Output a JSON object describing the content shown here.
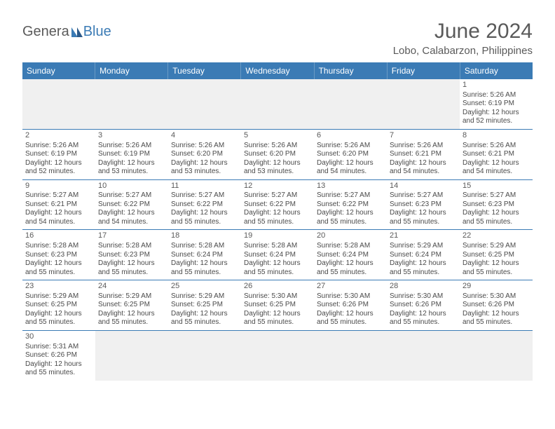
{
  "logo": {
    "part1": "Genera",
    "part2": "Blue"
  },
  "title": "June 2024",
  "location": "Lobo, Calabarzon, Philippines",
  "colors": {
    "header_bg": "#3b7bb5",
    "text": "#5a5a5a"
  },
  "dayHeaders": [
    "Sunday",
    "Monday",
    "Tuesday",
    "Wednesday",
    "Thursday",
    "Friday",
    "Saturday"
  ],
  "weeks": [
    [
      {
        "empty": true
      },
      {
        "empty": true
      },
      {
        "empty": true
      },
      {
        "empty": true
      },
      {
        "empty": true
      },
      {
        "empty": true
      },
      {
        "day": "1",
        "sunrise": "Sunrise: 5:26 AM",
        "sunset": "Sunset: 6:19 PM",
        "daylight1": "Daylight: 12 hours",
        "daylight2": "and 52 minutes."
      }
    ],
    [
      {
        "day": "2",
        "sunrise": "Sunrise: 5:26 AM",
        "sunset": "Sunset: 6:19 PM",
        "daylight1": "Daylight: 12 hours",
        "daylight2": "and 52 minutes."
      },
      {
        "day": "3",
        "sunrise": "Sunrise: 5:26 AM",
        "sunset": "Sunset: 6:19 PM",
        "daylight1": "Daylight: 12 hours",
        "daylight2": "and 53 minutes."
      },
      {
        "day": "4",
        "sunrise": "Sunrise: 5:26 AM",
        "sunset": "Sunset: 6:20 PM",
        "daylight1": "Daylight: 12 hours",
        "daylight2": "and 53 minutes."
      },
      {
        "day": "5",
        "sunrise": "Sunrise: 5:26 AM",
        "sunset": "Sunset: 6:20 PM",
        "daylight1": "Daylight: 12 hours",
        "daylight2": "and 53 minutes."
      },
      {
        "day": "6",
        "sunrise": "Sunrise: 5:26 AM",
        "sunset": "Sunset: 6:20 PM",
        "daylight1": "Daylight: 12 hours",
        "daylight2": "and 54 minutes."
      },
      {
        "day": "7",
        "sunrise": "Sunrise: 5:26 AM",
        "sunset": "Sunset: 6:21 PM",
        "daylight1": "Daylight: 12 hours",
        "daylight2": "and 54 minutes."
      },
      {
        "day": "8",
        "sunrise": "Sunrise: 5:26 AM",
        "sunset": "Sunset: 6:21 PM",
        "daylight1": "Daylight: 12 hours",
        "daylight2": "and 54 minutes."
      }
    ],
    [
      {
        "day": "9",
        "sunrise": "Sunrise: 5:27 AM",
        "sunset": "Sunset: 6:21 PM",
        "daylight1": "Daylight: 12 hours",
        "daylight2": "and 54 minutes."
      },
      {
        "day": "10",
        "sunrise": "Sunrise: 5:27 AM",
        "sunset": "Sunset: 6:22 PM",
        "daylight1": "Daylight: 12 hours",
        "daylight2": "and 54 minutes."
      },
      {
        "day": "11",
        "sunrise": "Sunrise: 5:27 AM",
        "sunset": "Sunset: 6:22 PM",
        "daylight1": "Daylight: 12 hours",
        "daylight2": "and 55 minutes."
      },
      {
        "day": "12",
        "sunrise": "Sunrise: 5:27 AM",
        "sunset": "Sunset: 6:22 PM",
        "daylight1": "Daylight: 12 hours",
        "daylight2": "and 55 minutes."
      },
      {
        "day": "13",
        "sunrise": "Sunrise: 5:27 AM",
        "sunset": "Sunset: 6:22 PM",
        "daylight1": "Daylight: 12 hours",
        "daylight2": "and 55 minutes."
      },
      {
        "day": "14",
        "sunrise": "Sunrise: 5:27 AM",
        "sunset": "Sunset: 6:23 PM",
        "daylight1": "Daylight: 12 hours",
        "daylight2": "and 55 minutes."
      },
      {
        "day": "15",
        "sunrise": "Sunrise: 5:27 AM",
        "sunset": "Sunset: 6:23 PM",
        "daylight1": "Daylight: 12 hours",
        "daylight2": "and 55 minutes."
      }
    ],
    [
      {
        "day": "16",
        "sunrise": "Sunrise: 5:28 AM",
        "sunset": "Sunset: 6:23 PM",
        "daylight1": "Daylight: 12 hours",
        "daylight2": "and 55 minutes."
      },
      {
        "day": "17",
        "sunrise": "Sunrise: 5:28 AM",
        "sunset": "Sunset: 6:23 PM",
        "daylight1": "Daylight: 12 hours",
        "daylight2": "and 55 minutes."
      },
      {
        "day": "18",
        "sunrise": "Sunrise: 5:28 AM",
        "sunset": "Sunset: 6:24 PM",
        "daylight1": "Daylight: 12 hours",
        "daylight2": "and 55 minutes."
      },
      {
        "day": "19",
        "sunrise": "Sunrise: 5:28 AM",
        "sunset": "Sunset: 6:24 PM",
        "daylight1": "Daylight: 12 hours",
        "daylight2": "and 55 minutes."
      },
      {
        "day": "20",
        "sunrise": "Sunrise: 5:28 AM",
        "sunset": "Sunset: 6:24 PM",
        "daylight1": "Daylight: 12 hours",
        "daylight2": "and 55 minutes."
      },
      {
        "day": "21",
        "sunrise": "Sunrise: 5:29 AM",
        "sunset": "Sunset: 6:24 PM",
        "daylight1": "Daylight: 12 hours",
        "daylight2": "and 55 minutes."
      },
      {
        "day": "22",
        "sunrise": "Sunrise: 5:29 AM",
        "sunset": "Sunset: 6:25 PM",
        "daylight1": "Daylight: 12 hours",
        "daylight2": "and 55 minutes."
      }
    ],
    [
      {
        "day": "23",
        "sunrise": "Sunrise: 5:29 AM",
        "sunset": "Sunset: 6:25 PM",
        "daylight1": "Daylight: 12 hours",
        "daylight2": "and 55 minutes."
      },
      {
        "day": "24",
        "sunrise": "Sunrise: 5:29 AM",
        "sunset": "Sunset: 6:25 PM",
        "daylight1": "Daylight: 12 hours",
        "daylight2": "and 55 minutes."
      },
      {
        "day": "25",
        "sunrise": "Sunrise: 5:29 AM",
        "sunset": "Sunset: 6:25 PM",
        "daylight1": "Daylight: 12 hours",
        "daylight2": "and 55 minutes."
      },
      {
        "day": "26",
        "sunrise": "Sunrise: 5:30 AM",
        "sunset": "Sunset: 6:25 PM",
        "daylight1": "Daylight: 12 hours",
        "daylight2": "and 55 minutes."
      },
      {
        "day": "27",
        "sunrise": "Sunrise: 5:30 AM",
        "sunset": "Sunset: 6:26 PM",
        "daylight1": "Daylight: 12 hours",
        "daylight2": "and 55 minutes."
      },
      {
        "day": "28",
        "sunrise": "Sunrise: 5:30 AM",
        "sunset": "Sunset: 6:26 PM",
        "daylight1": "Daylight: 12 hours",
        "daylight2": "and 55 minutes."
      },
      {
        "day": "29",
        "sunrise": "Sunrise: 5:30 AM",
        "sunset": "Sunset: 6:26 PM",
        "daylight1": "Daylight: 12 hours",
        "daylight2": "and 55 minutes."
      }
    ],
    [
      {
        "day": "30",
        "sunrise": "Sunrise: 5:31 AM",
        "sunset": "Sunset: 6:26 PM",
        "daylight1": "Daylight: 12 hours",
        "daylight2": "and 55 minutes."
      },
      {
        "empty": true
      },
      {
        "empty": true
      },
      {
        "empty": true
      },
      {
        "empty": true
      },
      {
        "empty": true
      },
      {
        "empty": true
      }
    ]
  ]
}
